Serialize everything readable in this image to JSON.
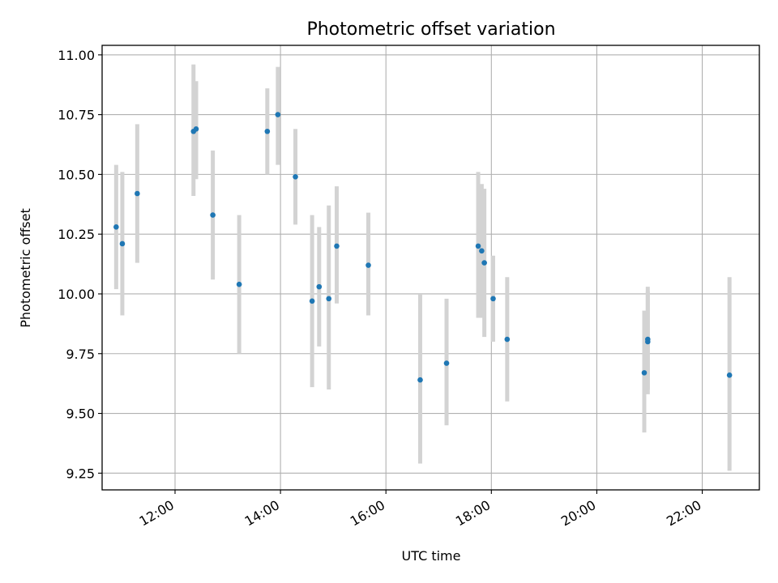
{
  "chart_data": {
    "type": "scatter",
    "title": "Photometric offset variation",
    "xlabel": "UTC time",
    "ylabel": "Photometric offset",
    "xlim": [
      "10:37",
      "23:05"
    ],
    "ylim": [
      9.18,
      11.04
    ],
    "x_ticks": [
      "12:00",
      "14:00",
      "16:00",
      "18:00",
      "20:00",
      "22:00"
    ],
    "y_ticks": [
      9.25,
      9.5,
      9.75,
      10.0,
      10.25,
      10.5,
      10.75,
      11.0
    ],
    "y_tick_labels": [
      "9.25",
      "9.50",
      "9.75",
      "10.00",
      "10.25",
      "10.50",
      "10.75",
      "11.00"
    ],
    "grid": true,
    "colors": {
      "marker": "#1f77b4",
      "errorbar": "#d3d3d3",
      "grid": "#b0b0b0"
    },
    "points": [
      {
        "x": "10:53",
        "y": 10.28,
        "yerr_low": 10.02,
        "yerr_high": 10.54
      },
      {
        "x": "11:00",
        "y": 10.21,
        "yerr_low": 9.91,
        "yerr_high": 10.51
      },
      {
        "x": "11:17",
        "y": 10.42,
        "yerr_low": 10.13,
        "yerr_high": 10.71
      },
      {
        "x": "12:21",
        "y": 10.68,
        "yerr_low": 10.41,
        "yerr_high": 10.96
      },
      {
        "x": "12:24",
        "y": 10.69,
        "yerr_low": 10.48,
        "yerr_high": 10.89
      },
      {
        "x": "12:43",
        "y": 10.33,
        "yerr_low": 10.06,
        "yerr_high": 10.6
      },
      {
        "x": "13:13",
        "y": 10.04,
        "yerr_low": 9.75,
        "yerr_high": 10.33
      },
      {
        "x": "13:45",
        "y": 10.68,
        "yerr_low": 10.5,
        "yerr_high": 10.86
      },
      {
        "x": "13:57",
        "y": 10.75,
        "yerr_low": 10.54,
        "yerr_high": 10.95
      },
      {
        "x": "14:17",
        "y": 10.49,
        "yerr_low": 10.29,
        "yerr_high": 10.69
      },
      {
        "x": "14:36",
        "y": 9.97,
        "yerr_low": 9.61,
        "yerr_high": 10.33
      },
      {
        "x": "14:44",
        "y": 10.03,
        "yerr_low": 9.78,
        "yerr_high": 10.28
      },
      {
        "x": "14:55",
        "y": 9.98,
        "yerr_low": 9.6,
        "yerr_high": 10.37
      },
      {
        "x": "15:04",
        "y": 10.2,
        "yerr_low": 9.96,
        "yerr_high": 10.45
      },
      {
        "x": "15:40",
        "y": 10.12,
        "yerr_low": 9.91,
        "yerr_high": 10.34
      },
      {
        "x": "16:39",
        "y": 9.64,
        "yerr_low": 9.29,
        "yerr_high": 10.0
      },
      {
        "x": "17:09",
        "y": 9.71,
        "yerr_low": 9.45,
        "yerr_high": 9.98
      },
      {
        "x": "17:45",
        "y": 10.2,
        "yerr_low": 9.9,
        "yerr_high": 10.51
      },
      {
        "x": "17:49",
        "y": 10.18,
        "yerr_low": 9.9,
        "yerr_high": 10.46
      },
      {
        "x": "17:52",
        "y": 10.13,
        "yerr_low": 9.82,
        "yerr_high": 10.44
      },
      {
        "x": "18:02",
        "y": 9.98,
        "yerr_low": 9.8,
        "yerr_high": 10.16
      },
      {
        "x": "18:18",
        "y": 9.81,
        "yerr_low": 9.55,
        "yerr_high": 10.07
      },
      {
        "x": "20:54",
        "y": 9.67,
        "yerr_low": 9.42,
        "yerr_high": 9.93
      },
      {
        "x": "20:58",
        "y": 9.81,
        "yerr_low": 9.58,
        "yerr_high": 10.03
      },
      {
        "x": "20:58",
        "y": 9.8,
        "yerr_low": 9.6,
        "yerr_high": 10.01
      },
      {
        "x": "22:31",
        "y": 9.66,
        "yerr_low": 9.26,
        "yerr_high": 10.07
      }
    ]
  }
}
